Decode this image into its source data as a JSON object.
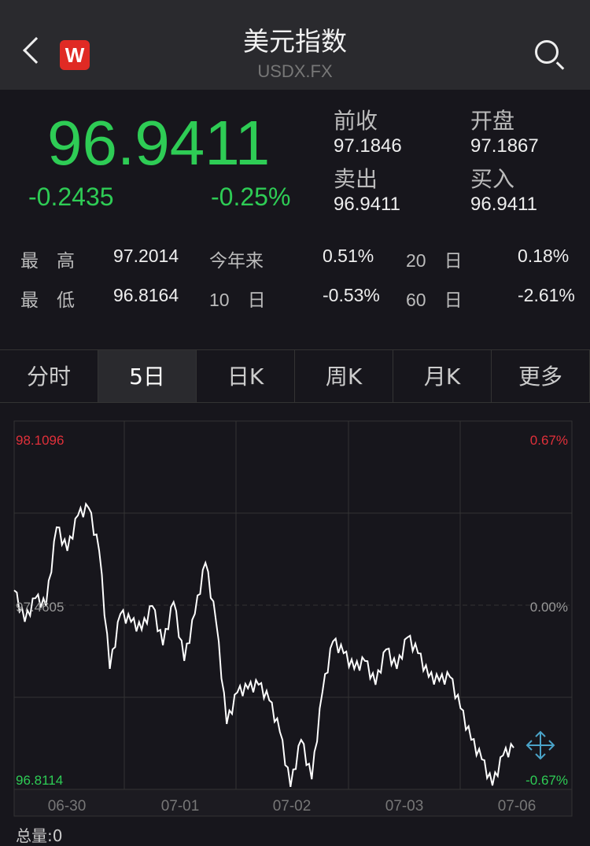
{
  "header": {
    "title": "美元指数",
    "symbol": "USDX.FX",
    "logo": "W"
  },
  "quote": {
    "price": "96.9411",
    "change": "-0.2435",
    "change_pct": "-0.25%",
    "prev_close_label": "前收",
    "prev_close": "97.1846",
    "open_label": "开盘",
    "open": "97.1867",
    "sell_label": "卖出",
    "sell": "96.9411",
    "buy_label": "买入",
    "buy": "96.9411"
  },
  "stats": [
    {
      "label": "最　高",
      "value": "97.2014",
      "l2": "今年来",
      "v2": "0.51%",
      "l3": "20　日",
      "v3": "0.18%"
    },
    {
      "label": "最　低",
      "value": "96.8164",
      "l2": "10　日",
      "v2": "-0.53%",
      "l3": "60　日",
      "v3": "-2.61%"
    }
  ],
  "tabs": [
    "分时",
    "5日",
    "日K",
    "周K",
    "月K",
    "更多"
  ],
  "active_tab": 1,
  "colors": {
    "up": "#e0303a",
    "down": "#2ecc55"
  },
  "chart_data": {
    "type": "line",
    "ylim": [
      96.8114,
      98.1096
    ],
    "y_labels": {
      "top": "98.1096",
      "mid": "97.4605",
      "bottom": "96.8114"
    },
    "pct_labels": {
      "top": "0.67%",
      "mid": "0.00%",
      "bottom": "-0.67%"
    },
    "x_labels": [
      "06-30",
      "07-01",
      "07-02",
      "07-03",
      "07-06"
    ],
    "values": [
      97.513,
      97.402,
      97.485,
      97.458,
      97.735,
      97.652,
      97.777,
      97.804,
      97.652,
      97.236,
      97.43,
      97.402,
      97.374,
      97.458,
      97.319,
      97.472,
      97.264,
      97.43,
      97.61,
      97.402,
      97.042,
      97.153,
      97.167,
      97.18,
      97.125,
      97.014,
      96.82,
      96.986,
      96.847,
      97.153,
      97.333,
      97.291,
      97.236,
      97.264,
      97.18,
      97.305,
      97.236,
      97.347,
      97.291,
      97.208,
      97.194,
      97.208,
      97.097,
      96.986,
      96.917,
      96.825,
      96.931,
      96.958
    ]
  },
  "footer": {
    "volume": "总量:0"
  }
}
